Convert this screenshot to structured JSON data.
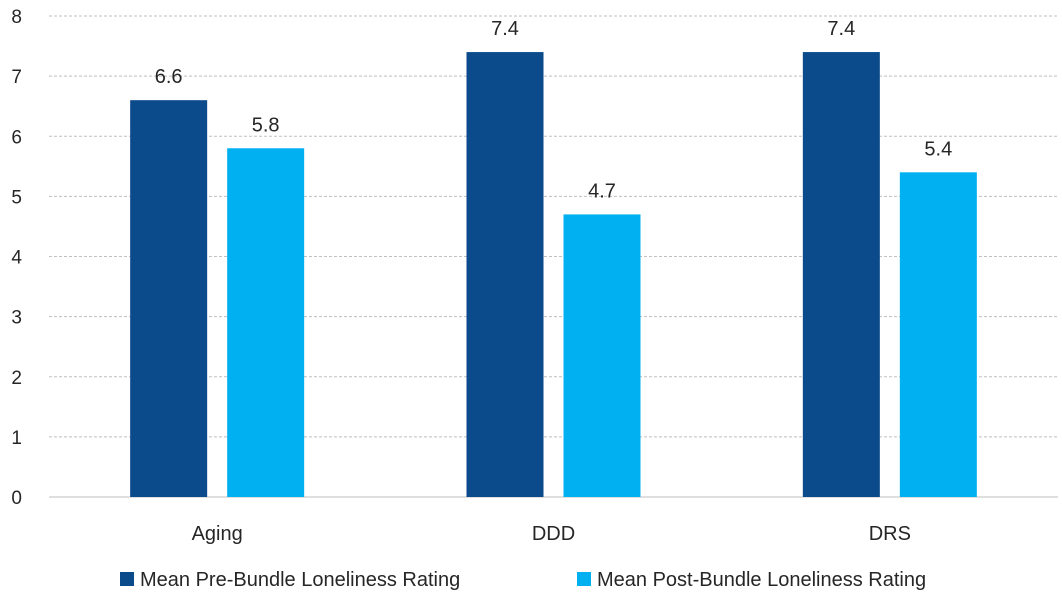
{
  "chart_data": {
    "type": "bar",
    "title": "",
    "xlabel": "",
    "ylabel": "",
    "categories": [
      "Aging",
      "DDD",
      "DRS"
    ],
    "series": [
      {
        "name": "Mean Pre-Bundle Loneliness Rating",
        "color": "#0b4a8b",
        "values": [
          6.6,
          7.4,
          7.4
        ]
      },
      {
        "name": "Mean Post-Bundle Loneliness Rating",
        "color": "#00b0f0",
        "values": [
          5.8,
          4.7,
          5.4
        ]
      }
    ],
    "ylim": [
      0,
      8
    ],
    "yticks": [
      0,
      1,
      2,
      3,
      4,
      5,
      6,
      7,
      8
    ],
    "grid": true,
    "legend": "bottom"
  }
}
